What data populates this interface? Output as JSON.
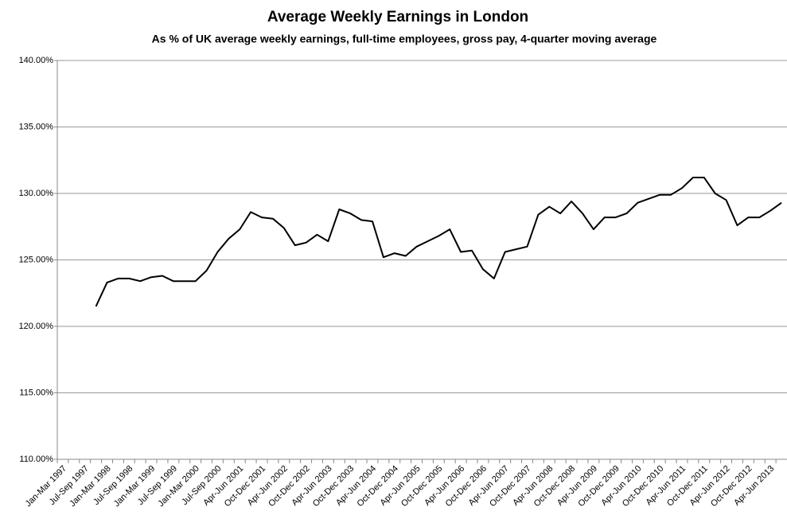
{
  "chart_data": {
    "type": "line",
    "title": "Average Weekly Earnings in London",
    "subtitle": "As % of UK average weekly earnings, full-time employees,  gross pay, 4-quarter moving average",
    "categories": [
      "Jan-Mar 1997",
      null,
      "Jul-Sep 1997",
      null,
      "Jan-Mar 1998",
      null,
      "Jul-Sep 1998",
      null,
      "Jan-Mar 1999",
      null,
      "Jul-Sep 1999",
      null,
      "Jan-Mar 2000",
      null,
      "Jul-Sep 2000",
      null,
      "Apr-Jun 2001",
      null,
      "Oct-Dec 2001",
      null,
      "Apr-Jun 2002",
      null,
      "Oct-Dec 2002",
      null,
      "Apr-Jun 2003",
      null,
      "Oct-Dec 2003",
      null,
      "Apr-Jun 2004",
      null,
      "Oct-Dec 2004",
      null,
      "Apr-Jun 2005",
      null,
      "Oct-Dec 2005",
      null,
      "Apr-Jun 2006",
      null,
      "Oct-Dec 2006",
      null,
      "Apr-Jun 2007",
      null,
      "Oct-Dec 2007",
      null,
      "Apr-Jun 2008",
      null,
      "Oct-Dec 2008",
      null,
      "Apr-Jun 2009",
      null,
      "Oct-Dec 2009",
      null,
      "Apr-Jun 2010",
      null,
      "Oct-Dec 2010",
      null,
      "Apr-Jun 2011",
      null,
      "Oct-Dec 2011",
      null,
      "Apr-Jun 2012",
      null,
      "Oct-Dec 2012",
      null,
      "Apr-Jun 2013",
      null
    ],
    "values": [
      null,
      null,
      null,
      121.5,
      123.3,
      123.6,
      123.6,
      123.4,
      123.7,
      123.8,
      123.4,
      123.4,
      123.4,
      124.2,
      125.6,
      126.6,
      127.3,
      128.6,
      128.2,
      128.1,
      127.4,
      126.1,
      126.3,
      126.9,
      126.4,
      128.8,
      128.5,
      128.0,
      127.9,
      125.2,
      125.5,
      125.3,
      126.0,
      126.4,
      126.8,
      127.3,
      125.6,
      125.7,
      124.3,
      123.6,
      125.6,
      125.8,
      126.0,
      128.4,
      129.0,
      128.5,
      129.4,
      128.5,
      127.3,
      128.2,
      128.2,
      128.5,
      129.3,
      129.6,
      129.9,
      129.9,
      130.4,
      131.2,
      131.2,
      130.0,
      129.5,
      127.6,
      128.2,
      128.2,
      128.7,
      129.3
    ],
    "color": "#000000",
    "ylim": [
      110,
      140
    ],
    "yticks": [
      {
        "value": 110,
        "label": "110.00%"
      },
      {
        "value": 115,
        "label": "115.00%"
      },
      {
        "value": 120,
        "label": "120.00%"
      },
      {
        "value": 125,
        "label": "125.00%"
      },
      {
        "value": 130,
        "label": "130.00%"
      },
      {
        "value": 135,
        "label": "135.00%"
      },
      {
        "value": 140,
        "label": "140.00%"
      }
    ],
    "grid": true
  }
}
